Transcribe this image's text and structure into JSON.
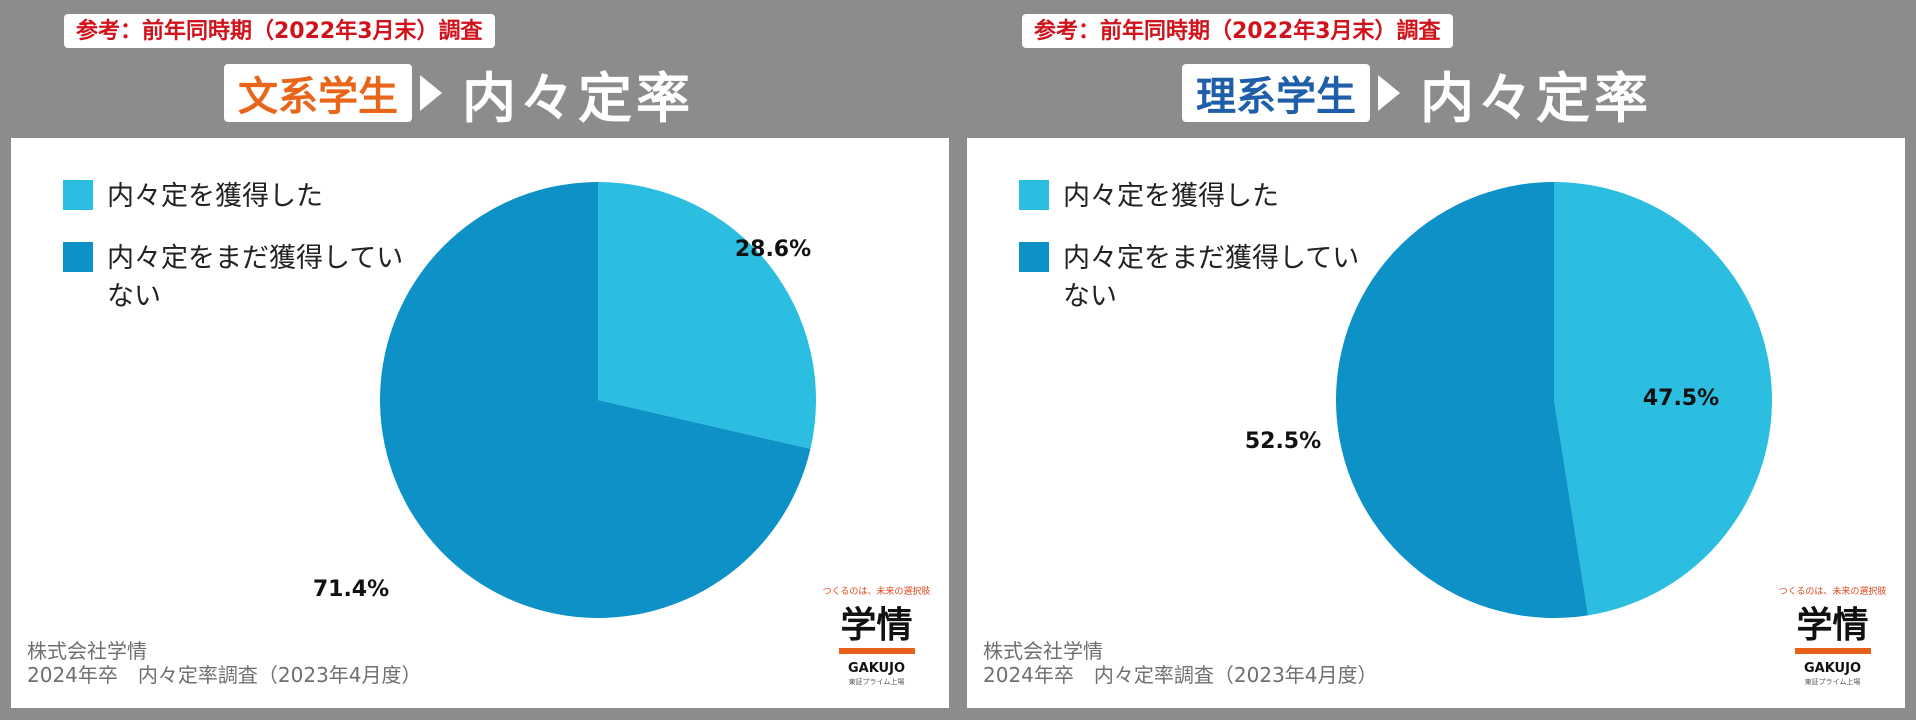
{
  "panels": [
    {
      "reference": "参考：前年同時期（2022年3月末）調査",
      "tag": "文系学生",
      "tag_color": "#e8651a",
      "title": "内々定率",
      "legend": [
        "内々定を獲得した",
        "内々定をまだ獲得していない"
      ],
      "footer_line1": "株式会社学情",
      "footer_line2": "2024年卒　内々定率調査（2023年4月度）",
      "labels": [
        "28.6%",
        "71.4%"
      ]
    },
    {
      "reference": "参考：前年同時期（2022年3月末）調査",
      "tag": "理系学生",
      "tag_color": "#1f5ea8",
      "title": "内々定率",
      "legend": [
        "内々定を獲得した",
        "内々定をまだ獲得していない"
      ],
      "footer_line1": "株式会社学情",
      "footer_line2": "2024年卒　内々定率調査（2023年4月度）",
      "labels": [
        "47.5%",
        "52.5%"
      ]
    }
  ],
  "logo": {
    "tagline": "つくるのは、未来の選択肢",
    "name": "学情",
    "name_en": "GAKUJO",
    "sub": "東証プライム上場"
  },
  "colors": {
    "acquired": "#2bbee0",
    "not_acquired": "#0e91c6",
    "reference_text": "#d0121b"
  },
  "chart_data": [
    {
      "type": "pie",
      "categories": [
        "内々定を獲得した",
        "内々定をまだ獲得していない"
      ],
      "values": [
        28.6,
        71.4
      ],
      "legend_position": "top-left"
    },
    {
      "type": "pie",
      "categories": [
        "内々定を獲得した",
        "内々定をまだ獲得していない"
      ],
      "values": [
        47.5,
        52.5
      ],
      "legend_position": "top-left"
    }
  ]
}
